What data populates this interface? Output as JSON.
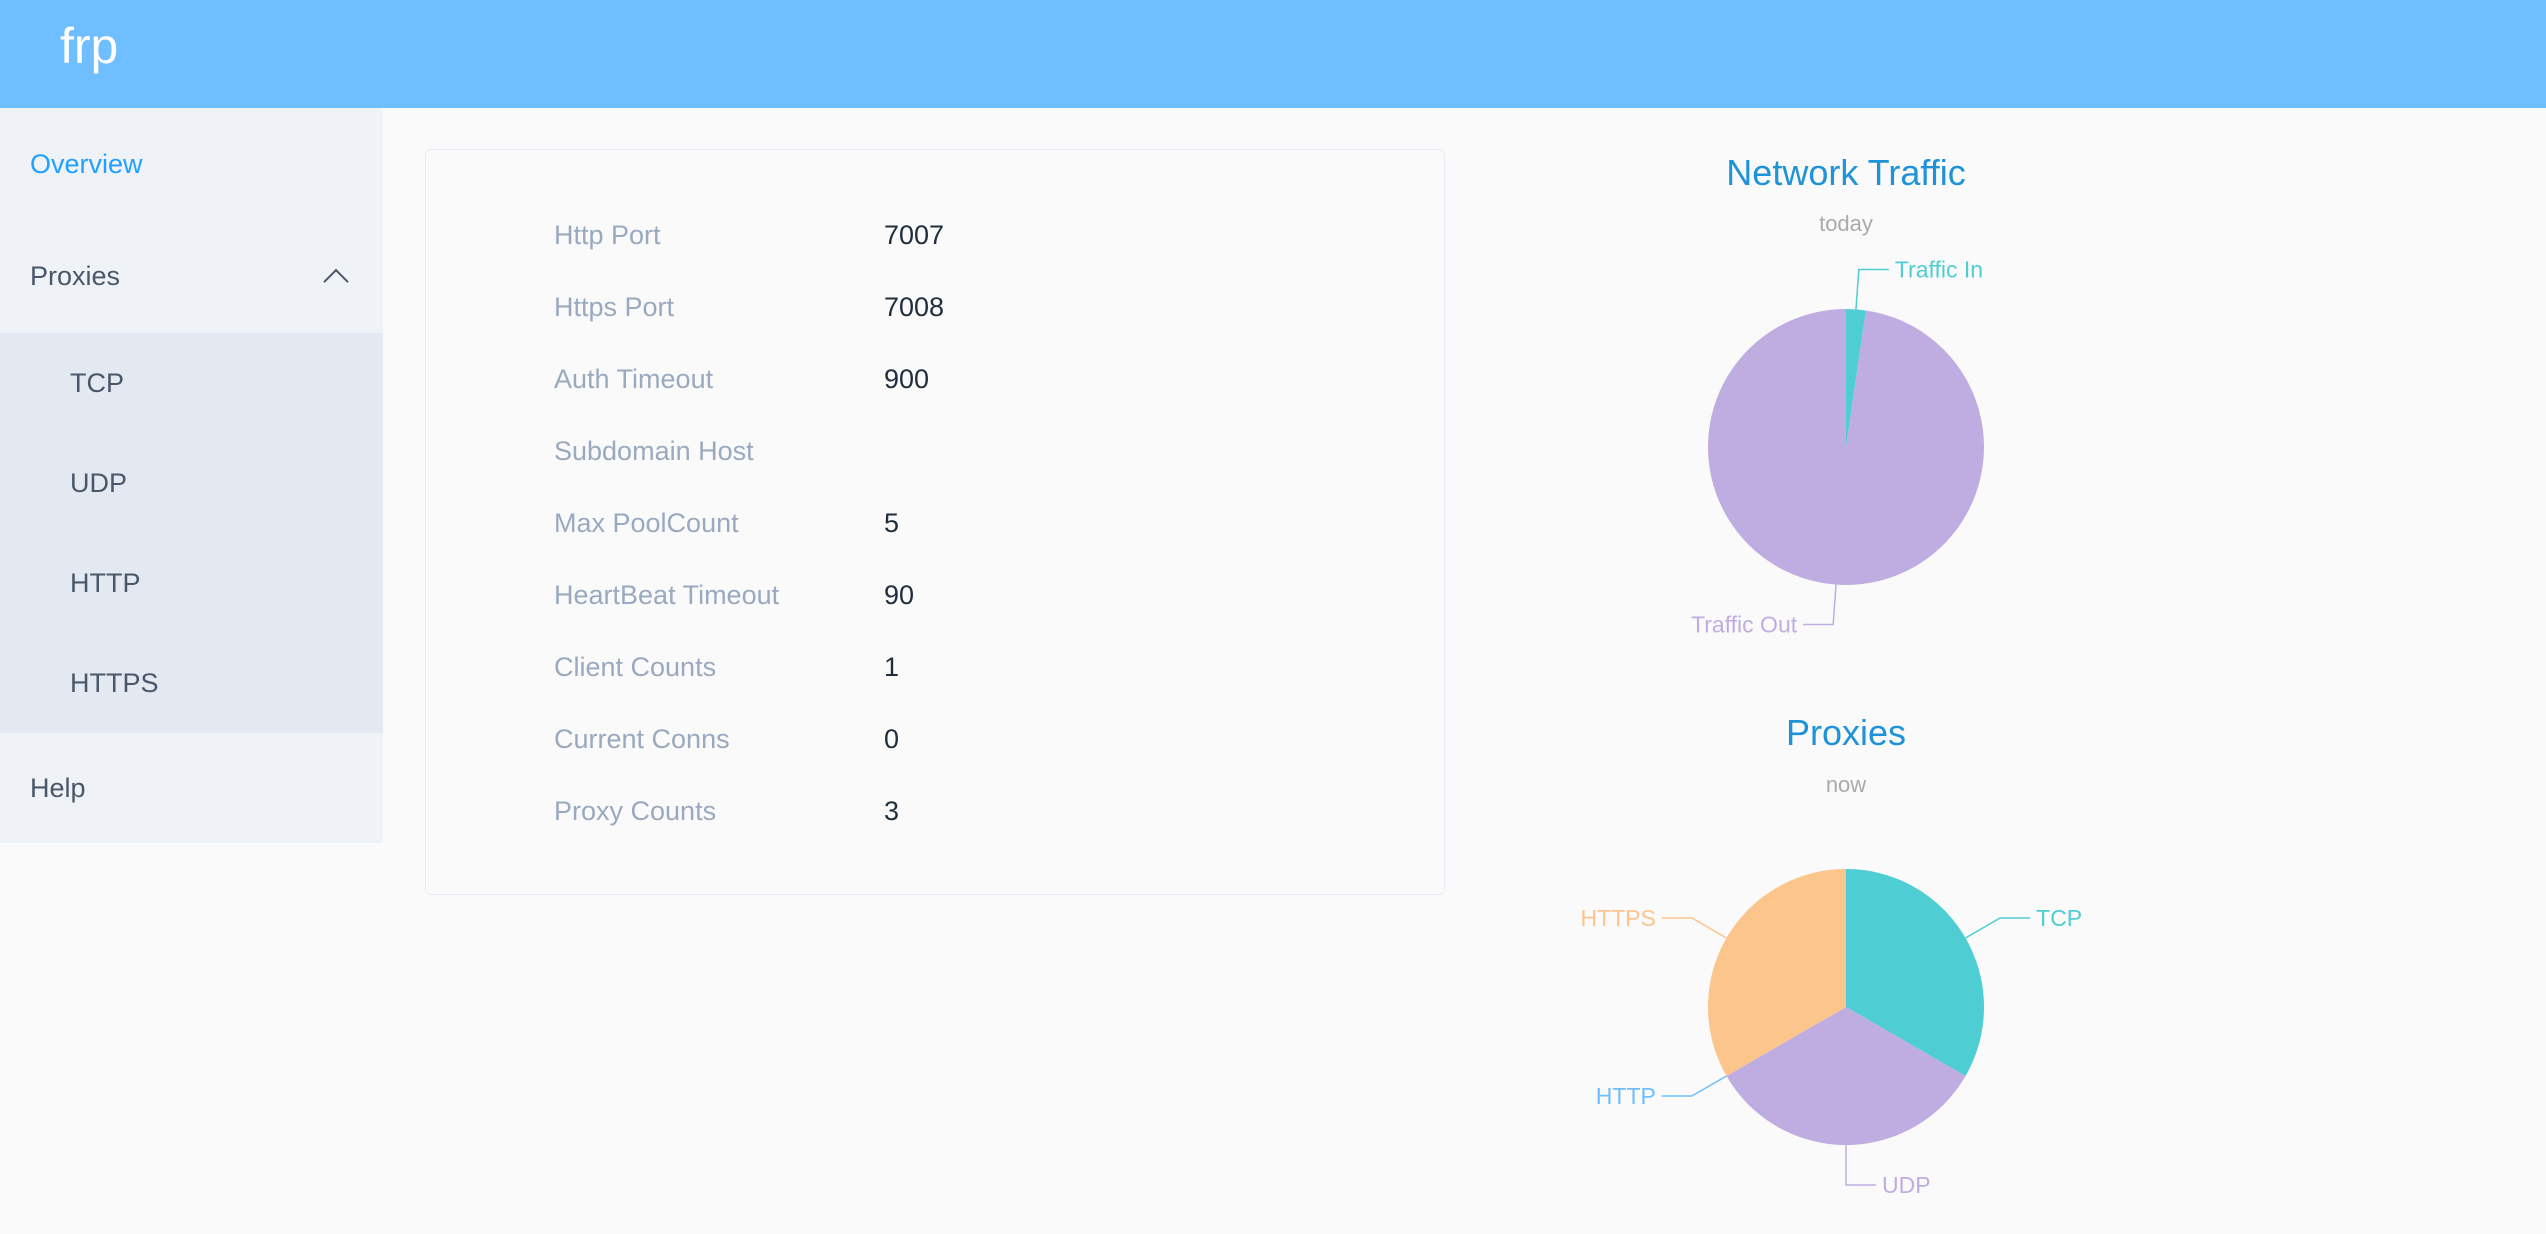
{
  "header": {
    "brand": "frp",
    "color": "#6fbeff"
  },
  "sidebar": {
    "items": [
      {
        "label": "Overview",
        "active": true
      },
      {
        "label": "Proxies",
        "expanded": true,
        "icon": "chevron-up-icon"
      },
      {
        "label": "Help"
      }
    ],
    "proxies_submenu": [
      {
        "label": "TCP"
      },
      {
        "label": "UDP"
      },
      {
        "label": "HTTP"
      },
      {
        "label": "HTTPS"
      }
    ]
  },
  "server_info": [
    {
      "label": "Http Port",
      "value": "7007"
    },
    {
      "label": "Https Port",
      "value": "7008"
    },
    {
      "label": "Auth Timeout",
      "value": "900"
    },
    {
      "label": "Subdomain Host",
      "value": ""
    },
    {
      "label": "Max PoolCount",
      "value": "5"
    },
    {
      "label": "HeartBeat Timeout",
      "value": "90"
    },
    {
      "label": "Client Counts",
      "value": "1"
    },
    {
      "label": "Current Conns",
      "value": "0"
    },
    {
      "label": "Proxy Counts",
      "value": "3"
    }
  ],
  "chart_data": [
    {
      "type": "pie",
      "title": "Network Traffic",
      "subtitle": "today",
      "slices": [
        {
          "name": "Traffic In",
          "value": 2.3,
          "color": "#4ecdd2"
        },
        {
          "name": "Traffic Out",
          "value": 97.7,
          "color": "#bfade2"
        }
      ]
    },
    {
      "type": "pie",
      "title": "Proxies",
      "subtitle": "now",
      "slices": [
        {
          "name": "TCP",
          "value": 1,
          "color": "#4ecdd2"
        },
        {
          "name": "UDP",
          "value": 1,
          "color": "#bfade2"
        },
        {
          "name": "HTTP",
          "value": 0,
          "color": "#6fbeff"
        },
        {
          "name": "HTTPS",
          "value": 1,
          "color": "#fbc58c"
        }
      ]
    }
  ]
}
